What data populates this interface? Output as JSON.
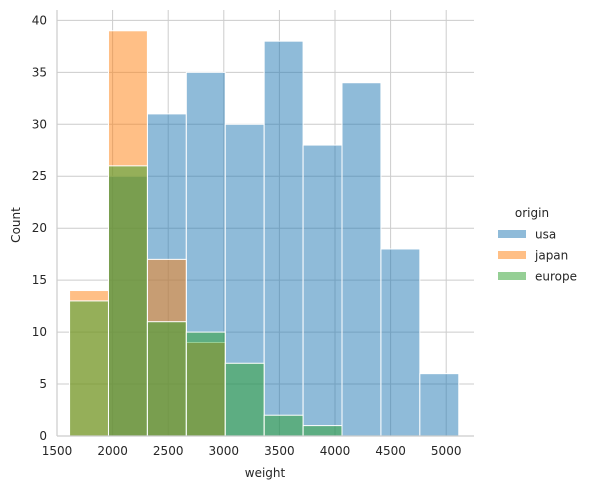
{
  "chart_data": {
    "type": "bar",
    "subtype": "overlaid-histogram",
    "title": "",
    "xlabel": "weight",
    "ylabel": "Count",
    "xlim": [
      1500,
      5250
    ],
    "ylim": [
      0,
      41
    ],
    "xticks": [
      1500,
      2000,
      2500,
      3000,
      3500,
      4000,
      4500,
      5000
    ],
    "xtick_labels": [
      "1500",
      "2000",
      "2500",
      "3000",
      "3500",
      "4000",
      "4500",
      "5000"
    ],
    "yticks": [
      0,
      5,
      10,
      15,
      20,
      25,
      30,
      35,
      40
    ],
    "ytick_labels": [
      "0",
      "5",
      "10",
      "15",
      "20",
      "25",
      "30",
      "35",
      "40"
    ],
    "grid": true,
    "legend": {
      "title": "origin",
      "placement": "right"
    },
    "bin_edges": [
      1613,
      1963,
      2313,
      2663,
      3013,
      3363,
      3713,
      4063,
      4413,
      4763,
      5113
    ],
    "series": [
      {
        "name": "usa",
        "color": "#1f77b4",
        "values": [
          0,
          25,
          31,
          35,
          30,
          38,
          28,
          34,
          18,
          6
        ]
      },
      {
        "name": "japan",
        "color": "#ff7f0e",
        "values": [
          14,
          39,
          17,
          9,
          0,
          0,
          0,
          0,
          0,
          0
        ]
      },
      {
        "name": "europe",
        "color": "#2ca02c",
        "values": [
          13,
          26,
          11,
          10,
          7,
          2,
          1,
          0,
          0,
          0
        ]
      }
    ]
  }
}
